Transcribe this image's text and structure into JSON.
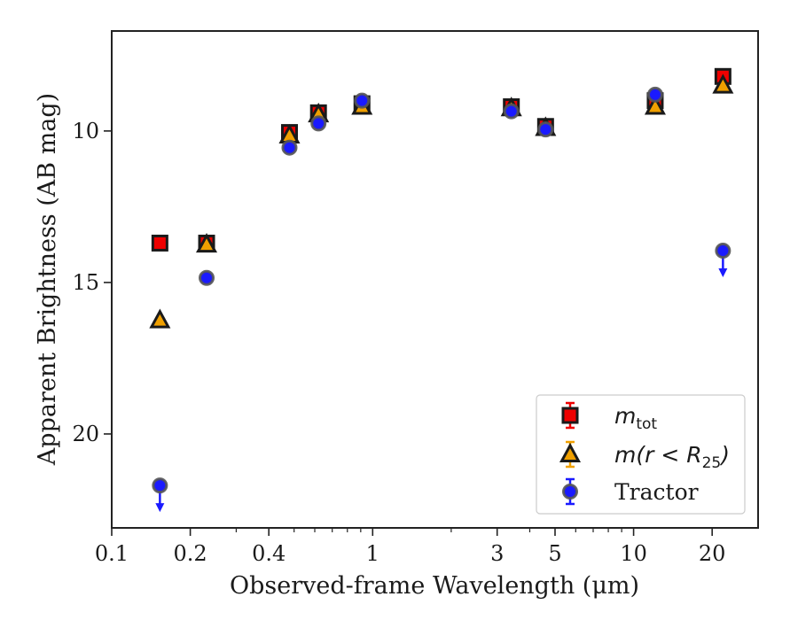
{
  "chart_data": {
    "type": "scatter",
    "title": "",
    "xlabel": "Observed-frame Wavelength (μm)",
    "ylabel": "Apparent Brightness (AB mag)",
    "xscale": "log",
    "xlim": [
      0.1,
      30
    ],
    "ylim": [
      23.1,
      6.7
    ],
    "y_inverted": true,
    "x_ticks": [
      {
        "value": 0.1,
        "label": "0.1"
      },
      {
        "value": 0.2,
        "label": "0.2"
      },
      {
        "value": 0.4,
        "label": "0.4"
      },
      {
        "value": 1,
        "label": "1"
      },
      {
        "value": 3,
        "label": "3"
      },
      {
        "value": 5,
        "label": "5"
      },
      {
        "value": 10,
        "label": "10"
      },
      {
        "value": 20,
        "label": "20"
      }
    ],
    "y_ticks": [
      {
        "value": 10,
        "label": "10"
      },
      {
        "value": 15,
        "label": "15"
      },
      {
        "value": 20,
        "label": "20"
      }
    ],
    "grid": false,
    "legend_position": "bottom-right",
    "series": [
      {
        "name": "m_tot",
        "marker": "square",
        "color": "#ee0000",
        "points": [
          {
            "x": 0.153,
            "y": 13.7
          },
          {
            "x": 0.231,
            "y": 13.7
          },
          {
            "x": 0.48,
            "y": 10.05
          },
          {
            "x": 0.62,
            "y": 9.4
          },
          {
            "x": 0.91,
            "y": 9.1
          },
          {
            "x": 3.4,
            "y": 9.2
          },
          {
            "x": 4.6,
            "y": 9.85
          },
          {
            "x": 12.1,
            "y": 9.0
          },
          {
            "x": 22.0,
            "y": 8.2
          }
        ]
      },
      {
        "name": "m(r < R_25)",
        "marker": "triangle",
        "color": "#f0a000",
        "points": [
          {
            "x": 0.153,
            "y": 16.25
          },
          {
            "x": 0.231,
            "y": 13.75
          },
          {
            "x": 0.48,
            "y": 10.15
          },
          {
            "x": 0.62,
            "y": 9.45
          },
          {
            "x": 0.91,
            "y": 9.2
          },
          {
            "x": 3.4,
            "y": 9.25
          },
          {
            "x": 4.6,
            "y": 9.9
          },
          {
            "x": 12.1,
            "y": 9.2
          },
          {
            "x": 22.0,
            "y": 8.5
          }
        ]
      },
      {
        "name": "Tractor",
        "marker": "circle",
        "color": "#1a1aff",
        "points": [
          {
            "x": 0.153,
            "y": 21.7,
            "upper_limit": true
          },
          {
            "x": 0.231,
            "y": 14.85
          },
          {
            "x": 0.48,
            "y": 10.55
          },
          {
            "x": 0.62,
            "y": 9.75
          },
          {
            "x": 0.91,
            "y": 9.0
          },
          {
            "x": 3.4,
            "y": 9.35
          },
          {
            "x": 4.6,
            "y": 9.95
          },
          {
            "x": 12.1,
            "y": 8.8
          },
          {
            "x": 22.0,
            "y": 13.95,
            "upper_limit": true
          }
        ]
      }
    ],
    "legend": {
      "entries": [
        {
          "label_main": "m",
          "label_sub": "tot",
          "label_rest": ""
        },
        {
          "label_main": "m(r < R",
          "label_sub": "25",
          "label_rest": ")"
        },
        {
          "label_main": "Tractor",
          "label_sub": "",
          "label_rest": ""
        }
      ]
    }
  }
}
